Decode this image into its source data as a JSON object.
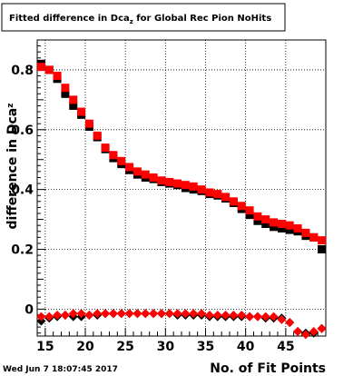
{
  "chart_data": {
    "type": "scatter",
    "title": "Fitted difference in Dca",
    "title_subscript": "z",
    "title_suffix": " for Global Rec Pion NoHits",
    "xlabel": "No. of Fit Points",
    "ylabel": "difference in Dca",
    "ylabel_subscript": "z",
    "xlim": [
      14,
      50
    ],
    "ylim": [
      -0.09,
      0.9
    ],
    "xticks": [
      15,
      20,
      25,
      30,
      35,
      40,
      45
    ],
    "yticks": [
      0,
      0.2,
      0.4,
      0.6,
      0.8
    ],
    "ytick_labels": [
      "0",
      "0.2",
      "0.4",
      "0.6",
      "0.8"
    ],
    "grid": true,
    "series": [
      {
        "color": "#000000",
        "marker": "square",
        "x": [
          14,
          15,
          16,
          17,
          18,
          19,
          20,
          21,
          22,
          23,
          24,
          25,
          26,
          27,
          28,
          29,
          30,
          31,
          32,
          33,
          34,
          35,
          36,
          37,
          38,
          39,
          40,
          41,
          42,
          43,
          44,
          45,
          46,
          47,
          48,
          49
        ],
        "y": [
          0.82,
          0.8,
          0.77,
          0.72,
          0.68,
          0.65,
          0.61,
          0.575,
          0.535,
          0.505,
          0.485,
          0.465,
          0.45,
          0.44,
          0.435,
          0.425,
          0.42,
          0.415,
          0.405,
          0.4,
          0.395,
          0.385,
          0.38,
          0.37,
          0.355,
          0.335,
          0.315,
          0.295,
          0.285,
          0.275,
          0.27,
          0.265,
          0.26,
          0.245,
          0.24,
          0.2
        ]
      },
      {
        "color": "#ff0000",
        "marker": "square",
        "x": [
          14,
          15,
          16,
          17,
          18,
          19,
          20,
          21,
          22,
          23,
          24,
          25,
          26,
          27,
          28,
          29,
          30,
          31,
          32,
          33,
          34,
          35,
          36,
          37,
          38,
          39,
          40,
          41,
          42,
          43,
          44,
          45,
          46,
          47,
          48,
          49
        ],
        "y": [
          0.81,
          0.8,
          0.78,
          0.74,
          0.7,
          0.66,
          0.62,
          0.58,
          0.54,
          0.515,
          0.495,
          0.475,
          0.46,
          0.45,
          0.44,
          0.43,
          0.425,
          0.42,
          0.415,
          0.41,
          0.4,
          0.39,
          0.385,
          0.375,
          0.36,
          0.345,
          0.33,
          0.31,
          0.3,
          0.29,
          0.285,
          0.28,
          0.27,
          0.255,
          0.24,
          0.23
        ]
      },
      {
        "color": "#000000",
        "marker": "diamond",
        "x": [
          14,
          15,
          16,
          17,
          18,
          19,
          20,
          21,
          22,
          23,
          24,
          25,
          26,
          27,
          28,
          29,
          30,
          31,
          32,
          33,
          34,
          35,
          36,
          37,
          38,
          39,
          40,
          41,
          42,
          43,
          44,
          45,
          46,
          47,
          48,
          49
        ],
        "y": [
          -0.04,
          -0.03,
          -0.025,
          -0.02,
          -0.025,
          -0.025,
          -0.02,
          -0.02,
          -0.015,
          -0.015,
          -0.015,
          -0.015,
          -0.015,
          -0.015,
          -0.015,
          -0.015,
          -0.015,
          -0.02,
          -0.02,
          -0.02,
          -0.02,
          -0.025,
          -0.025,
          -0.025,
          -0.025,
          -0.025,
          -0.025,
          -0.025,
          -0.03,
          -0.03,
          -0.03,
          -0.045,
          -0.075,
          -0.08,
          -0.08,
          -0.065
        ]
      },
      {
        "color": "#ff0000",
        "marker": "diamond",
        "x": [
          14,
          15,
          16,
          17,
          18,
          19,
          20,
          21,
          22,
          23,
          24,
          25,
          26,
          27,
          28,
          29,
          30,
          31,
          32,
          33,
          34,
          35,
          36,
          37,
          38,
          39,
          40,
          41,
          42,
          43,
          44,
          45,
          46,
          47,
          48,
          49
        ],
        "y": [
          -0.025,
          -0.025,
          -0.02,
          -0.02,
          -0.015,
          -0.015,
          -0.02,
          -0.015,
          -0.015,
          -0.015,
          -0.015,
          -0.015,
          -0.015,
          -0.015,
          -0.015,
          -0.015,
          -0.015,
          -0.015,
          -0.015,
          -0.015,
          -0.015,
          -0.02,
          -0.02,
          -0.02,
          -0.02,
          -0.02,
          -0.025,
          -0.025,
          -0.025,
          -0.025,
          -0.035,
          -0.045,
          -0.075,
          -0.085,
          -0.075,
          -0.065
        ]
      }
    ]
  },
  "footer": {
    "datestamp": "Wed Jun  7 18:07:45 2017"
  }
}
